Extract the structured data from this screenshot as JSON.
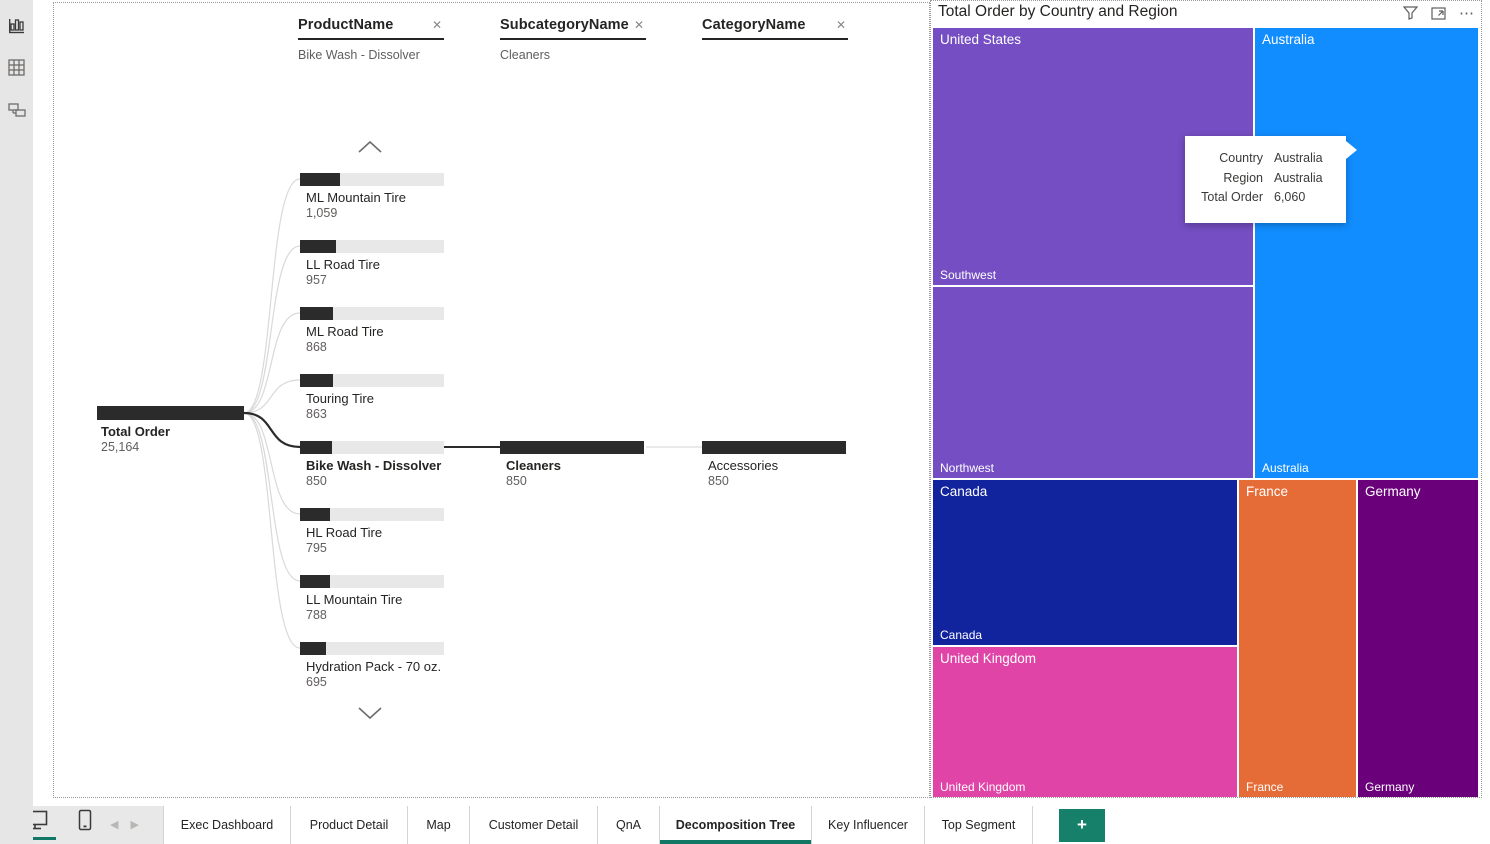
{
  "view_rail": {
    "report_view": "report-view",
    "data_view": "data-view",
    "model_view": "model-view"
  },
  "decomp": {
    "columns": [
      {
        "label": "ProductName",
        "selected_value": "Bike Wash - Dissolver",
        "close": "✕"
      },
      {
        "label": "SubcategoryName",
        "selected_value": "Cleaners",
        "close": "✕"
      },
      {
        "label": "CategoryName",
        "selected_value": "",
        "close": "✕"
      }
    ],
    "root": {
      "label": "Total Order",
      "value": "25,164",
      "bar_pct": 100
    },
    "children": [
      {
        "label": "ML Mountain Tire",
        "value": "1,059",
        "bar_pct": 28
      },
      {
        "label": "LL Road Tire",
        "value": "957",
        "bar_pct": 25
      },
      {
        "label": "ML Road Tire",
        "value": "868",
        "bar_pct": 23
      },
      {
        "label": "Touring Tire",
        "value": "863",
        "bar_pct": 23
      },
      {
        "label": "Bike Wash - Dissolver",
        "value": "850",
        "bar_pct": 22
      },
      {
        "label": "HL Road Tire",
        "value": "795",
        "bar_pct": 21
      },
      {
        "label": "LL Mountain Tire",
        "value": "788",
        "bar_pct": 21
      },
      {
        "label": "Hydration Pack - 70 oz.",
        "value": "695",
        "bar_pct": 18
      }
    ],
    "subcategory_node": {
      "label": "Cleaners",
      "value": "850",
      "bar_pct": 100
    },
    "category_node": {
      "label": "Accessories",
      "value": "850",
      "bar_pct": 100
    }
  },
  "treemap": {
    "title": "Total Order by Country and Region",
    "more_icon": "⋯",
    "cells": [
      {
        "country": "United States",
        "region": "Southwest",
        "color": "#744EC2"
      },
      {
        "country": "United States",
        "region": "Northwest",
        "color": "#744EC2"
      },
      {
        "country": "Australia",
        "region": "Australia",
        "color": "#118DFF"
      },
      {
        "country": "Canada",
        "region": "Canada",
        "color": "#12239E"
      },
      {
        "country": "United Kingdom",
        "region": "United Kingdom",
        "color": "#E044A7"
      },
      {
        "country": "France",
        "region": "France",
        "color": "#E66C37"
      },
      {
        "country": "Germany",
        "region": "Germany",
        "color": "#6B007B"
      }
    ],
    "tooltip": {
      "rows": [
        {
          "label": "Country",
          "value": "Australia"
        },
        {
          "label": "Region",
          "value": "Australia"
        },
        {
          "label": "Total Order",
          "value": "6,060"
        }
      ]
    }
  },
  "pages_bar": {
    "tabs": [
      {
        "label": "Exec Dashboard"
      },
      {
        "label": "Product Detail"
      },
      {
        "label": "Map"
      },
      {
        "label": "Customer Detail"
      },
      {
        "label": "QnA"
      },
      {
        "label": "Decomposition Tree"
      },
      {
        "label": "Key Influencer"
      },
      {
        "label": "Top Segment"
      }
    ],
    "active_tab": "Decomposition Tree",
    "add_label": "+"
  },
  "chart_data": [
    {
      "type": "decomposition_tree",
      "measure": "Total Order",
      "total": 25164,
      "levels": [
        "ProductName",
        "SubcategoryName",
        "CategoryName"
      ],
      "expanded_path": [
        "Bike Wash - Dissolver",
        "Cleaners",
        "Accessories"
      ],
      "categories": [
        "ML Mountain Tire",
        "LL Road Tire",
        "ML Road Tire",
        "Touring Tire",
        "Bike Wash - Dissolver",
        "HL Road Tire",
        "LL Mountain Tire",
        "Hydration Pack - 70 oz."
      ],
      "values": [
        1059,
        957,
        868,
        863,
        850,
        795,
        788,
        695
      ],
      "subcategory_value": 850,
      "category_value": 850
    },
    {
      "type": "treemap",
      "title": "Total Order by Country and Region",
      "groups": [
        "United States / Southwest",
        "United States / Northwest",
        "Australia / Australia",
        "Canada / Canada",
        "United Kingdom / United Kingdom",
        "France / France",
        "Germany / Germany"
      ],
      "known_values": {
        "Australia": 6060
      }
    }
  ]
}
